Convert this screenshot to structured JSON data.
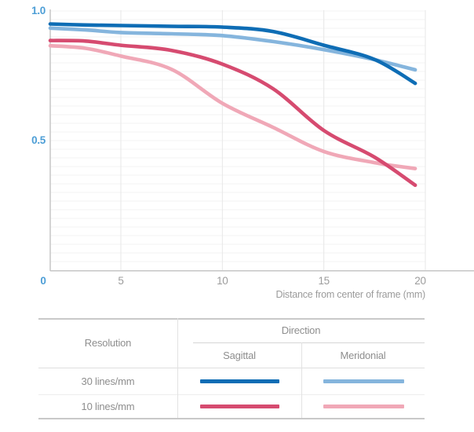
{
  "chart_data": {
    "type": "line",
    "title": "",
    "xlabel": "Distance from center of frame (mm)",
    "ylabel": "",
    "xlim": [
      0,
      20
    ],
    "ylim": [
      0,
      1.0
    ],
    "grid": true,
    "legend_position": "table-below",
    "x_tick_labels": [
      "0",
      "5",
      "10",
      "15",
      "20"
    ],
    "x_tick_values": [
      0,
      5,
      10,
      15,
      20
    ],
    "y_tick_labels": [
      "1.0",
      "0.5"
    ],
    "y_tick_values": [
      1.0,
      0.5
    ],
    "x": [
      0,
      2.5,
      5,
      7.5,
      10,
      12.5,
      15,
      17.5,
      19.5
    ],
    "series": [
      {
        "name": "10 lines/mm Meridonial",
        "color": "#f0a8b7",
        "values": [
          0.866,
          0.856,
          0.826,
          0.775,
          0.644,
          0.551,
          0.458,
          0.415,
          0.392
        ]
      },
      {
        "name": "10 lines/mm Sagittal",
        "color": "#d64b70",
        "values": [
          0.886,
          0.884,
          0.868,
          0.848,
          0.795,
          0.7,
          0.539,
          0.436,
          0.328
        ]
      },
      {
        "name": "30 lines/mm Meridonial",
        "color": "#85b5dd",
        "values": [
          0.934,
          0.927,
          0.917,
          0.912,
          0.905,
          0.882,
          0.851,
          0.812,
          0.773
        ]
      },
      {
        "name": "30 lines/mm Sagittal",
        "color": "#0e6db5",
        "values": [
          0.95,
          0.946,
          0.944,
          0.941,
          0.938,
          0.921,
          0.868,
          0.813,
          0.721
        ]
      }
    ]
  },
  "legend_table": {
    "resolution_header": "Resolution",
    "direction_header": "Direction",
    "col_headers": [
      "Sagittal",
      "Meridonial"
    ],
    "rows": [
      {
        "label": "30 lines/mm",
        "sagittal_color": "#0e6db5",
        "meridonial_color": "#85b5dd"
      },
      {
        "label": "10 lines/mm",
        "sagittal_color": "#d64b70",
        "meridonial_color": "#f0a8b7"
      }
    ]
  },
  "colors": {
    "tick_blue": "#4d9ed6",
    "tick_gray": "#9c9c9c",
    "axis_line": "#c6c6c6",
    "grid_horizontal": "#f3f3f3",
    "grid_vertical": "#e7e7e7",
    "table_border": "#c9c9c9",
    "table_inner_line": "#e2e2e2",
    "legend_text": "#8e8e8e"
  }
}
